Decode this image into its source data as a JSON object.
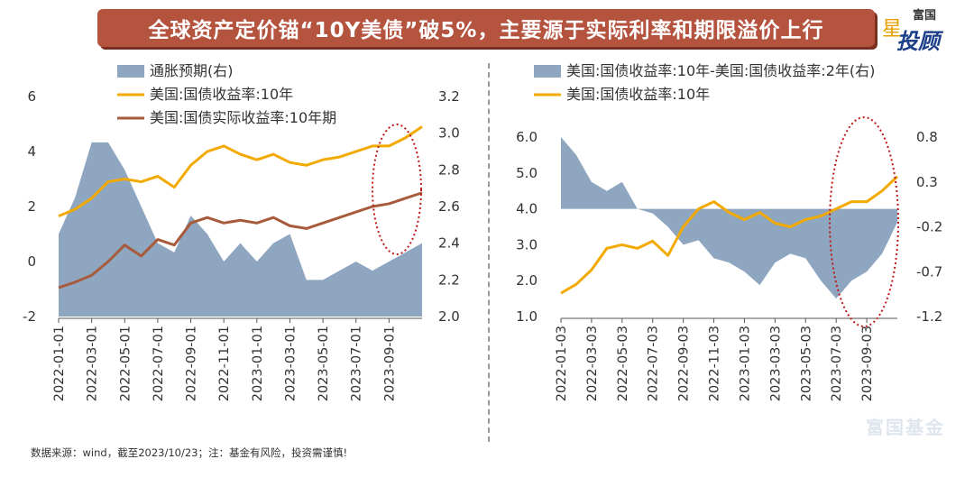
{
  "banner": {
    "title": "全球资产定价锚“10Y美债”破5%，主要源于实际利率和期限溢价上行"
  },
  "logo": {
    "top": "富国",
    "main": "投顾",
    "star": "星"
  },
  "watermark": "富国基金",
  "footer": {
    "note": "数据来源：wind，截至2023/10/23；注：基金有风险，投资需谨慎!"
  },
  "colors": {
    "area": "#8ea6bf",
    "yield": "#f2a900",
    "real": "#a85a3c",
    "circle": "#c01818"
  },
  "chart_data": [
    {
      "type": "line",
      "x_ticks": [
        "2022-01-01",
        "2022-03-01",
        "2022-05-01",
        "2022-07-01",
        "2022-09-01",
        "2022-11-01",
        "2023-01-01",
        "2023-03-01",
        "2023-05-01",
        "2023-07-01",
        "2023-09-01"
      ],
      "y_left_ticks": [
        "6",
        "4",
        "2",
        "0",
        "-2"
      ],
      "y_left_lim": [
        -2,
        6
      ],
      "y_right_ticks": [
        "3.2",
        "3.0",
        "2.8",
        "2.6",
        "2.4",
        "2.2",
        "2.0"
      ],
      "y_right_lim": [
        2.0,
        3.2
      ],
      "legend": [
        "通胀预期(右)",
        "美国:国债收益率:10年",
        "美国:国债实际收益率:10年期"
      ],
      "x_month": [
        0,
        1,
        2,
        3,
        4,
        5,
        6,
        7,
        8,
        9,
        10,
        11,
        12,
        13,
        14,
        15,
        16,
        17,
        18,
        19,
        20,
        21,
        22
      ],
      "series": [
        {
          "name": "通胀预期(右)",
          "type": "area",
          "axis": "right",
          "values": [
            2.45,
            2.65,
            2.95,
            2.95,
            2.8,
            2.6,
            2.4,
            2.35,
            2.55,
            2.45,
            2.3,
            2.4,
            2.3,
            2.4,
            2.45,
            2.2,
            2.2,
            2.25,
            2.3,
            2.25,
            2.3,
            2.35,
            2.4
          ]
        },
        {
          "name": "美国:国债收益率:10年",
          "axis": "left",
          "values": [
            1.65,
            1.9,
            2.3,
            2.9,
            3.0,
            2.9,
            3.1,
            2.7,
            3.5,
            4.0,
            4.2,
            3.9,
            3.7,
            3.9,
            3.6,
            3.5,
            3.7,
            3.8,
            4.0,
            4.2,
            4.2,
            4.5,
            4.9
          ]
        },
        {
          "name": "美国:国债实际收益率:10年期",
          "axis": "left",
          "values": [
            -0.95,
            -0.75,
            -0.5,
            0.0,
            0.6,
            0.2,
            0.8,
            0.6,
            1.4,
            1.6,
            1.4,
            1.5,
            1.4,
            1.6,
            1.3,
            1.2,
            1.4,
            1.6,
            1.8,
            2.0,
            2.1,
            2.3,
            2.5
          ]
        }
      ]
    },
    {
      "type": "line",
      "x_ticks": [
        "2022-01-03",
        "2022-03-03",
        "2022-05-03",
        "2022-07-03",
        "2022-09-03",
        "2022-11-03",
        "2023-01-03",
        "2023-03-03",
        "2023-05-03",
        "2023-07-03",
        "2023-09-03"
      ],
      "y_left_ticks": [
        "6.0",
        "5.0",
        "4.0",
        "3.0",
        "2.0",
        "1.0"
      ],
      "y_left_lim": [
        1.0,
        6.0
      ],
      "y_right_ticks": [
        "0.8",
        "0.3",
        "-0.2",
        "-0.7",
        "-1.2"
      ],
      "y_right_lim": [
        -1.2,
        0.8
      ],
      "legend": [
        "美国:国债收益率:10年-美国:国债收益率:2年(右)",
        "美国:国债收益率:10年"
      ],
      "x_month": [
        0,
        1,
        2,
        3,
        4,
        5,
        6,
        7,
        8,
        9,
        10,
        11,
        12,
        13,
        14,
        15,
        16,
        17,
        18,
        19,
        20,
        21,
        22
      ],
      "series": [
        {
          "name": "美国:国债收益率:10年-美国:国债收益率:2年(右)",
          "type": "area",
          "axis": "right",
          "baseline": 0,
          "values": [
            0.8,
            0.6,
            0.3,
            0.2,
            0.3,
            0.0,
            -0.05,
            -0.2,
            -0.4,
            -0.35,
            -0.55,
            -0.6,
            -0.7,
            -0.85,
            -0.6,
            -0.5,
            -0.55,
            -0.8,
            -1.0,
            -0.8,
            -0.7,
            -0.5,
            -0.15
          ]
        },
        {
          "name": "美国:国债收益率:10年",
          "axis": "left",
          "values": [
            1.65,
            1.9,
            2.3,
            2.9,
            3.0,
            2.9,
            3.1,
            2.7,
            3.5,
            4.0,
            4.2,
            3.9,
            3.7,
            3.9,
            3.6,
            3.5,
            3.7,
            3.8,
            4.0,
            4.2,
            4.2,
            4.5,
            4.9
          ]
        }
      ]
    }
  ]
}
